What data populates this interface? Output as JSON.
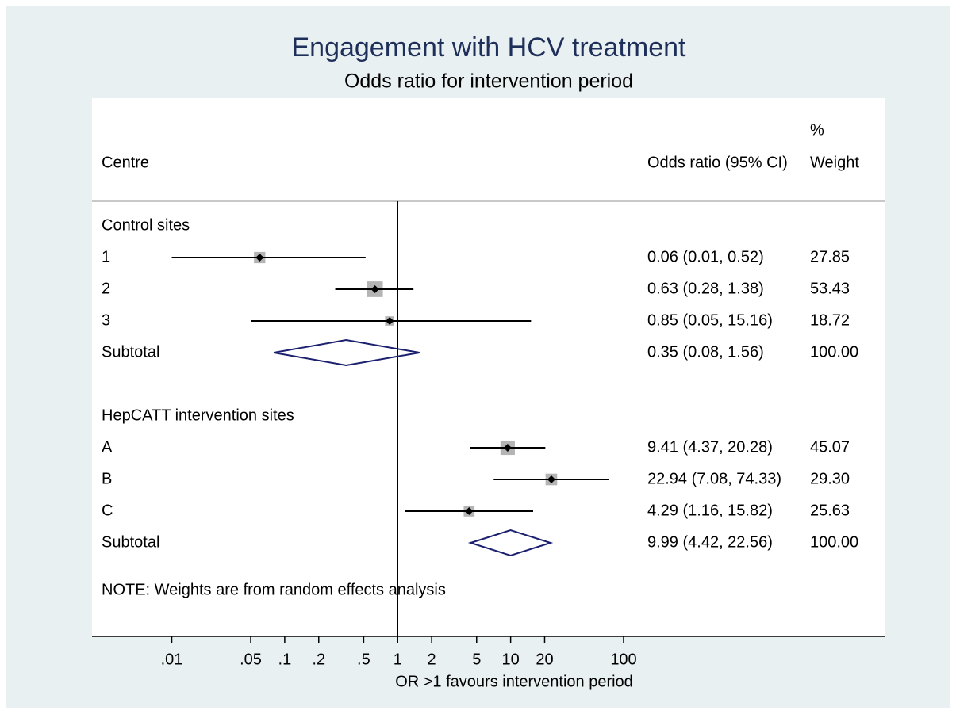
{
  "chart_data": {
    "type": "forest",
    "title": "Engagement with HCV treatment",
    "subtitle": "Odds ratio for intervention period",
    "columns": {
      "label": "Centre",
      "estimate": "Odds ratio (95% CI)",
      "weight_top": "%",
      "weight": "Weight"
    },
    "xlabel": "OR >1 favours intervention period",
    "note": "NOTE: Weights are from random effects analysis",
    "xscale": "log",
    "xlim": [
      0.002,
      100
    ],
    "xticks": [
      {
        "value": 0.01,
        "label": ".01"
      },
      {
        "value": 0.05,
        "label": ".05"
      },
      {
        "value": 0.1,
        "label": ".1"
      },
      {
        "value": 0.2,
        "label": ".2"
      },
      {
        "value": 0.5,
        "label": ".5"
      },
      1,
      2,
      5,
      10,
      20,
      100
    ],
    "null_line": 1,
    "box_color": "#b4b4b4",
    "diamond_color": "#1a1f6e",
    "groups": [
      {
        "name": "Control sites",
        "studies": [
          {
            "label": "1",
            "or": 0.06,
            "lo": 0.01,
            "hi": 0.52,
            "weight": 27.85,
            "estimate_label": "0.06 (0.01, 0.52)"
          },
          {
            "label": "2",
            "or": 0.63,
            "lo": 0.28,
            "hi": 1.38,
            "weight": 53.43,
            "estimate_label": "0.63 (0.28, 1.38)"
          },
          {
            "label": "3",
            "or": 0.85,
            "lo": 0.05,
            "hi": 15.16,
            "weight": 18.72,
            "estimate_label": "0.85 (0.05, 15.16)"
          }
        ],
        "subtotal": {
          "label": "Subtotal",
          "or": 0.35,
          "lo": 0.08,
          "hi": 1.56,
          "weight": 100,
          "weight_label": "100.00",
          "estimate_label": "0.35 (0.08, 1.56)"
        }
      },
      {
        "name": "HepCATT intervention sites",
        "studies": [
          {
            "label": "A",
            "or": 9.41,
            "lo": 4.37,
            "hi": 20.28,
            "weight": 45.07,
            "estimate_label": "9.41 (4.37, 20.28)"
          },
          {
            "label": "B",
            "or": 22.94,
            "lo": 7.08,
            "hi": 74.33,
            "weight": 29.3,
            "weight_label": "29.30",
            "estimate_label": "22.94 (7.08, 74.33)"
          },
          {
            "label": "C",
            "or": 4.29,
            "lo": 1.16,
            "hi": 15.82,
            "weight": 25.63,
            "estimate_label": "4.29 (1.16, 15.82)"
          }
        ],
        "subtotal": {
          "label": "Subtotal",
          "or": 9.99,
          "lo": 4.42,
          "hi": 22.56,
          "weight": 100,
          "weight_label": "100.00",
          "estimate_label": "9.99 (4.42, 22.56)"
        }
      }
    ]
  }
}
